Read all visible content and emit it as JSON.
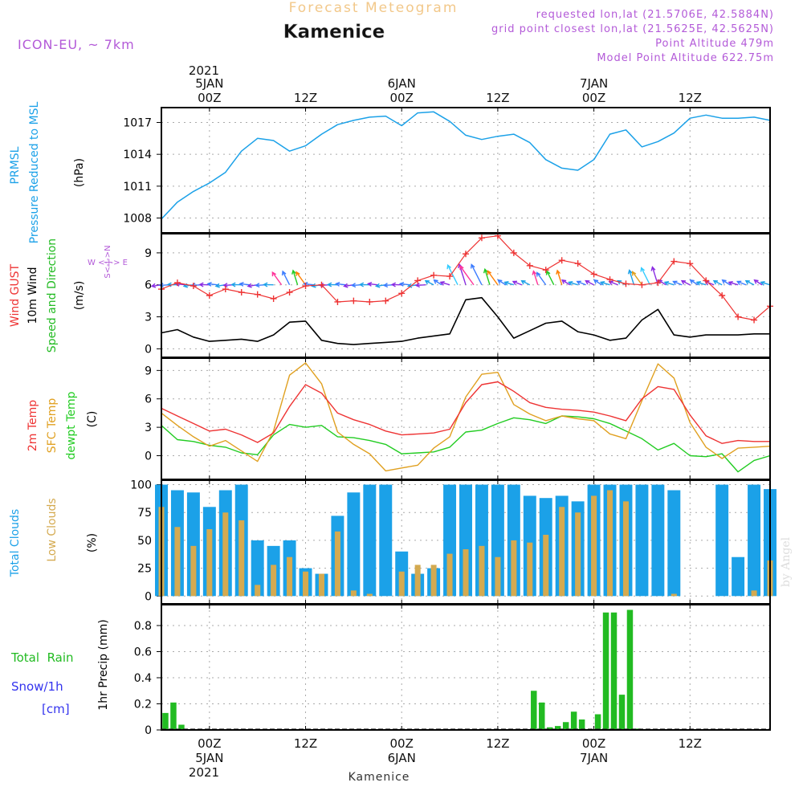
{
  "header": {
    "title_top": "Forecast Meteogram",
    "station": "Kamenice",
    "model": "ICON-EU, ~ 7km",
    "requested": "requested lon,lat (21.5706E, 42.5884N)",
    "gridpoint": "grid point closest lon,lat (21.5625E, 42.5625N)",
    "point_alt": "Point Altitude 479m",
    "model_alt": "Model Point Altitude 622.75m",
    "watermark": "by Angel",
    "footer_station": "Kamenice"
  },
  "time_axis": {
    "top_year": "2021",
    "bottom_year": "2021",
    "ticks": [
      {
        "hour": 6,
        "time": "00Z",
        "date": "5JAN"
      },
      {
        "hour": 18,
        "time": "12Z",
        "date": ""
      },
      {
        "hour": 30,
        "time": "00Z",
        "date": "6JAN"
      },
      {
        "hour": 42,
        "time": "12Z",
        "date": ""
      },
      {
        "hour": 54,
        "time": "00Z",
        "date": "7JAN"
      },
      {
        "hour": 66,
        "time": "12Z",
        "date": ""
      }
    ],
    "x_range": [
      0,
      76
    ]
  },
  "panel_labels": {
    "pressure": [
      "PRMSL",
      "Pressure Reduced to MSL"
    ],
    "pressure_unit": "(hPa)",
    "wind": [
      "Wind GUST",
      "10m Wind",
      "Speed and Direction"
    ],
    "wind_unit": "(m/s)",
    "compass_ew": "W <-|-> E",
    "compass_ns": "S<-|->N",
    "temp": [
      "2m Temp",
      "SFC Temp",
      "dewpt Temp"
    ],
    "temp_unit": "(C)",
    "clouds": [
      "Total Clouds",
      "Low Clouds"
    ],
    "clouds_unit": "(%)",
    "precip": [
      "Total  Rain",
      "Snow/1h",
      "[cm]"
    ],
    "precip_unit": "1hr Precip (mm)"
  },
  "colors": {
    "pressure": "#1ba1e8",
    "gust": "#ee3333",
    "wind": "#000000",
    "temp2m": "#ee3333",
    "sfc": "#e0a020",
    "dewpt": "#22cc22",
    "total_clouds": "#1ba1e8",
    "low_clouds": "#d4aa50",
    "rain": "#22bb22",
    "snow": "#3333ee",
    "header_purple": "#b35ad8",
    "title_orange": "#f2c88a"
  },
  "chart_data": [
    {
      "type": "line",
      "title": "PRMSL Pressure Reduced to MSL",
      "ylabel": "(hPa)",
      "ylim": [
        1006.6,
        1018.4
      ],
      "yticks": [
        1008,
        1011,
        1014,
        1017
      ],
      "x": [
        0,
        2,
        4,
        6,
        8,
        10,
        12,
        14,
        16,
        18,
        20,
        22,
        24,
        26,
        28,
        30,
        32,
        34,
        36,
        38,
        40,
        42,
        44,
        46,
        48,
        50,
        52,
        54,
        56,
        58,
        60,
        62,
        64,
        66,
        68,
        70,
        72,
        74,
        76
      ],
      "series": [
        {
          "name": "PRMSL",
          "values": [
            1007.9,
            1009.5,
            1010.5,
            1011.3,
            1012.3,
            1014.3,
            1015.5,
            1015.3,
            1014.3,
            1014.8,
            1015.9,
            1016.8,
            1017.2,
            1017.5,
            1017.6,
            1016.7,
            1017.9,
            1018.0,
            1017.1,
            1015.8,
            1015.4,
            1015.7,
            1015.9,
            1015.1,
            1013.5,
            1012.7,
            1012.5,
            1013.5,
            1015.9,
            1016.3,
            1014.7,
            1015.2,
            1016.0,
            1017.4,
            1017.7,
            1017.4,
            1017.4,
            1017.5,
            1017.2
          ]
        }
      ]
    },
    {
      "type": "line",
      "title": "Wind GUST / 10m Wind Speed and Direction",
      "ylabel": "(m/s)",
      "ylim": [
        -0.8,
        10.8
      ],
      "yticks": [
        0,
        3,
        6,
        9
      ],
      "x": [
        0,
        2,
        4,
        6,
        8,
        10,
        12,
        14,
        16,
        18,
        20,
        22,
        24,
        26,
        28,
        30,
        32,
        34,
        36,
        38,
        40,
        42,
        44,
        46,
        48,
        50,
        52,
        54,
        56,
        58,
        60,
        62,
        64,
        66,
        68,
        70,
        72,
        74,
        76
      ],
      "series": [
        {
          "name": "Wind GUST",
          "values": [
            5.6,
            6.2,
            5.9,
            5.0,
            5.6,
            5.3,
            5.1,
            4.7,
            5.3,
            5.9,
            6.0,
            4.4,
            4.5,
            4.4,
            4.5,
            5.2,
            6.4,
            6.9,
            6.8,
            8.9,
            10.4,
            10.6,
            9.0,
            7.8,
            7.4,
            8.3,
            8.0,
            7.0,
            6.5,
            6.1,
            6.0,
            6.2,
            8.2,
            8.0,
            6.4,
            5.0,
            3.0,
            2.7,
            4.0
          ]
        },
        {
          "name": "10m Wind",
          "values": [
            1.5,
            1.8,
            1.1,
            0.7,
            0.8,
            0.9,
            0.7,
            1.3,
            2.5,
            2.6,
            0.8,
            0.5,
            0.4,
            0.5,
            0.6,
            0.7,
            1.0,
            1.2,
            1.4,
            4.6,
            4.8,
            3.0,
            1.0,
            1.7,
            2.4,
            2.6,
            1.6,
            1.3,
            0.8,
            1.0,
            2.7,
            3.7,
            1.3,
            1.1,
            1.3,
            1.3,
            1.3,
            1.4,
            1.4
          ]
        }
      ],
      "wind_direction_arrows": "barbs along the 6 m/s line, colour graded by speed"
    },
    {
      "type": "line",
      "title": "2m Temp / SFC Temp / dewpt Temp",
      "ylabel": "(C)",
      "ylim": [
        -2.5,
        10.3
      ],
      "yticks": [
        0,
        3,
        6,
        9
      ],
      "x": [
        0,
        2,
        4,
        6,
        8,
        10,
        12,
        14,
        16,
        18,
        20,
        22,
        24,
        26,
        28,
        30,
        32,
        34,
        36,
        38,
        40,
        42,
        44,
        46,
        48,
        50,
        52,
        54,
        56,
        58,
        60,
        62,
        64,
        66,
        68,
        70,
        72,
        74,
        76
      ],
      "series": [
        {
          "name": "2m Temp",
          "values": [
            5.0,
            4.2,
            3.4,
            2.6,
            2.8,
            2.2,
            1.4,
            2.4,
            5.2,
            7.5,
            6.6,
            4.5,
            3.8,
            3.3,
            2.6,
            2.2,
            2.3,
            2.4,
            2.8,
            5.6,
            7.5,
            7.8,
            6.8,
            5.6,
            5.1,
            4.9,
            4.8,
            4.6,
            4.2,
            3.7,
            6.0,
            7.3,
            7.0,
            4.3,
            2.1,
            1.3,
            1.6,
            1.5,
            1.5
          ]
        },
        {
          "name": "SFC Temp",
          "values": [
            4.5,
            3.2,
            2.0,
            1.0,
            1.6,
            0.5,
            -0.6,
            2.6,
            8.5,
            9.8,
            7.6,
            2.5,
            1.2,
            0.2,
            -1.6,
            -1.3,
            -1.0,
            0.8,
            2.0,
            6.2,
            8.6,
            8.8,
            5.4,
            4.4,
            3.7,
            4.2,
            3.9,
            3.7,
            2.3,
            1.8,
            5.8,
            9.7,
            8.2,
            3.5,
            0.9,
            -0.3,
            0.8,
            0.9,
            1.0
          ]
        },
        {
          "name": "dewpt Temp",
          "values": [
            3.2,
            1.7,
            1.5,
            1.1,
            0.9,
            0.3,
            0.1,
            2.2,
            3.3,
            3.0,
            3.2,
            2.0,
            1.9,
            1.6,
            1.2,
            0.2,
            0.3,
            0.4,
            0.9,
            2.5,
            2.7,
            3.4,
            4.0,
            3.8,
            3.4,
            4.2,
            4.1,
            3.9,
            3.4,
            2.6,
            1.8,
            0.6,
            1.3,
            0.0,
            -0.1,
            0.2,
            -1.7,
            -0.5,
            0.0
          ]
        }
      ]
    },
    {
      "type": "bar",
      "title": "Total Clouds / Low Clouds",
      "ylabel": "(%)",
      "ylim": [
        -7,
        104
      ],
      "yticks": [
        0,
        25,
        50,
        75,
        100
      ],
      "x": [
        0,
        2,
        4,
        6,
        8,
        10,
        12,
        14,
        16,
        18,
        20,
        22,
        24,
        26,
        28,
        30,
        32,
        34,
        36,
        38,
        40,
        42,
        44,
        46,
        48,
        50,
        52,
        54,
        56,
        58,
        60,
        62,
        64,
        66,
        68,
        70,
        72,
        74,
        76
      ],
      "series": [
        {
          "name": "Total Clouds",
          "values": [
            100,
            95,
            93,
            80,
            95,
            100,
            50,
            45,
            50,
            25,
            20,
            72,
            93,
            100,
            100,
            40,
            20,
            25,
            100,
            100,
            100,
            100,
            100,
            90,
            88,
            90,
            85,
            100,
            100,
            100,
            100,
            100,
            95,
            0,
            0,
            100,
            35,
            100,
            96
          ]
        },
        {
          "name": "Low Clouds",
          "values": [
            80,
            62,
            45,
            60,
            75,
            68,
            10,
            28,
            35,
            22,
            20,
            58,
            5,
            2,
            0,
            22,
            28,
            28,
            38,
            42,
            45,
            35,
            50,
            48,
            55,
            80,
            75,
            90,
            95,
            85,
            0,
            0,
            2,
            0,
            0,
            0,
            0,
            5,
            32
          ]
        }
      ]
    },
    {
      "type": "bar",
      "title": "1hr Precip",
      "ylabel": "1hr Precip (mm)",
      "ylim": [
        0,
        0.96
      ],
      "yticks": [
        0,
        0.2,
        0.4,
        0.6,
        0.8
      ],
      "x": [
        0.5,
        1.5,
        2.5,
        46.5,
        47.5,
        48.5,
        49.5,
        50.5,
        51.5,
        52.5,
        54.5,
        55.5,
        56.5,
        57.5,
        58.5,
        59.5
      ],
      "series": [
        {
          "name": "Total Rain",
          "values": [
            0.13,
            0.21,
            0.04,
            0.3,
            0.21,
            0.02,
            0.03,
            0.06,
            0.14,
            0.08,
            0.12,
            0.9,
            0.9,
            0.27,
            0.92,
            0.01
          ]
        },
        {
          "name": "Snow/1h",
          "values": [
            0,
            0,
            0,
            0,
            0,
            0,
            0,
            0,
            0,
            0,
            0,
            0,
            0,
            0,
            0,
            0
          ]
        }
      ]
    }
  ]
}
